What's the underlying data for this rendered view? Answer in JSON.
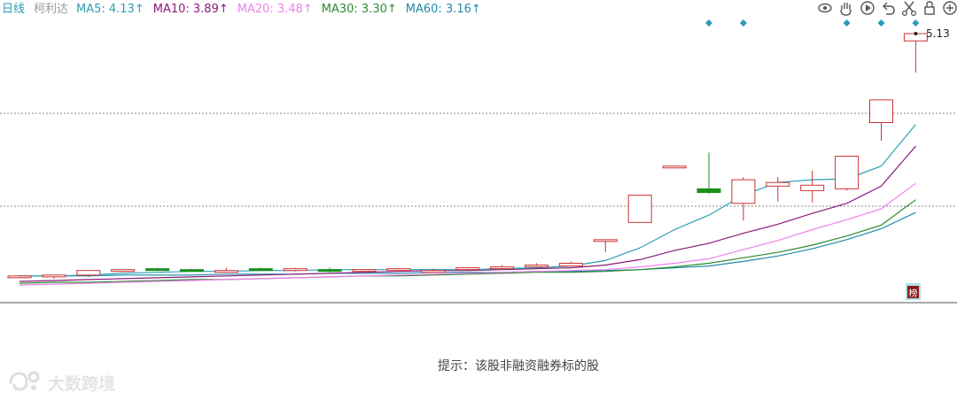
{
  "header": {
    "period_label": "日线",
    "stock_name": "柯利达",
    "ma_items": [
      {
        "label": "MA5: 4.13↑",
        "color": "#2aa0b4"
      },
      {
        "label": "MA10: 3.89↑",
        "color": "#8b1a7a"
      },
      {
        "label": "MA20: 3.48↑",
        "color": "#ee82ee"
      },
      {
        "label": "MA30: 3.30↑",
        "color": "#2e8b2e"
      },
      {
        "label": "MA60: 3.16↑",
        "color": "#1e8aa8"
      }
    ]
  },
  "toolbar": {
    "icons": [
      "eye-icon",
      "hand-icon",
      "play-icon",
      "undo-icon",
      "scissors-icon",
      "lock-icon",
      "zoom-in-icon"
    ]
  },
  "badge": {
    "text": "榜"
  },
  "footer": {
    "note": "提示：该股非融资融券标的股"
  },
  "watermark": {
    "text": "大数跨境"
  },
  "colors": {
    "up": "#cc3333",
    "down": "#1a8f1a",
    "marker": "#2a9bb8",
    "grid": "#888888"
  },
  "chart_data": {
    "type": "candlestick",
    "price_label": "5.13",
    "y_range": [
      2.25,
      5.35
    ],
    "candles": [
      {
        "o": 2.46,
        "h": 2.47,
        "l": 2.45,
        "c": 2.46
      },
      {
        "o": 2.45,
        "h": 2.47,
        "l": 2.43,
        "c": 2.47
      },
      {
        "o": 2.47,
        "h": 2.52,
        "l": 2.45,
        "c": 2.52
      },
      {
        "o": 2.52,
        "h": 2.53,
        "l": 2.5,
        "c": 2.53
      },
      {
        "o": 2.54,
        "h": 2.55,
        "l": 2.52,
        "c": 2.53
      },
      {
        "o": 2.53,
        "h": 2.54,
        "l": 2.51,
        "c": 2.52
      },
      {
        "o": 2.52,
        "h": 2.55,
        "l": 2.51,
        "c": 2.52
      },
      {
        "o": 2.54,
        "h": 2.55,
        "l": 2.52,
        "c": 2.53
      },
      {
        "o": 2.52,
        "h": 2.55,
        "l": 2.51,
        "c": 2.54
      },
      {
        "o": 2.53,
        "h": 2.55,
        "l": 2.5,
        "c": 2.52
      },
      {
        "o": 2.52,
        "h": 2.53,
        "l": 2.5,
        "c": 2.53
      },
      {
        "o": 2.53,
        "h": 2.55,
        "l": 2.51,
        "c": 2.54
      },
      {
        "o": 2.52,
        "h": 2.54,
        "l": 2.51,
        "c": 2.52
      },
      {
        "o": 2.53,
        "h": 2.56,
        "l": 2.52,
        "c": 2.55
      },
      {
        "o": 2.55,
        "h": 2.58,
        "l": 2.53,
        "c": 2.56
      },
      {
        "o": 2.56,
        "h": 2.6,
        "l": 2.55,
        "c": 2.58
      },
      {
        "o": 2.57,
        "h": 2.62,
        "l": 2.56,
        "c": 2.6
      },
      {
        "o": 2.86,
        "h": 2.86,
        "l": 2.72,
        "c": 2.86
      },
      {
        "o": 3.05,
        "h": 3.35,
        "l": 3.05,
        "c": 3.35
      },
      {
        "o": 3.67,
        "h": 3.67,
        "l": 3.67,
        "c": 3.67
      },
      {
        "o": 3.42,
        "h": 3.82,
        "l": 3.36,
        "c": 3.38
      },
      {
        "o": 3.26,
        "h": 3.55,
        "l": 3.07,
        "c": 3.52
      },
      {
        "o": 3.45,
        "h": 3.55,
        "l": 3.28,
        "c": 3.49
      },
      {
        "o": 3.4,
        "h": 3.62,
        "l": 3.27,
        "c": 3.46
      },
      {
        "o": 3.42,
        "h": 3.78,
        "l": 3.4,
        "c": 3.78
      },
      {
        "o": 4.15,
        "h": 4.4,
        "l": 3.95,
        "c": 4.4
      },
      {
        "o": 5.05,
        "h": 5.13,
        "l": 4.7,
        "c": 5.13
      }
    ],
    "ma5": [
      2.46,
      2.46,
      2.47,
      2.49,
      2.5,
      2.51,
      2.51,
      2.52,
      2.52,
      2.53,
      2.53,
      2.53,
      2.53,
      2.53,
      2.54,
      2.55,
      2.57,
      2.63,
      2.77,
      2.97,
      3.13,
      3.35,
      3.49,
      3.52,
      3.53,
      3.67,
      4.13
    ],
    "ma10": [
      2.4,
      2.41,
      2.42,
      2.43,
      2.44,
      2.45,
      2.46,
      2.47,
      2.48,
      2.49,
      2.5,
      2.51,
      2.52,
      2.52,
      2.53,
      2.54,
      2.55,
      2.58,
      2.64,
      2.74,
      2.82,
      2.93,
      3.03,
      3.15,
      3.26,
      3.45,
      3.89
    ],
    "ma20": [
      2.36,
      2.37,
      2.38,
      2.39,
      2.4,
      2.41,
      2.42,
      2.43,
      2.44,
      2.45,
      2.46,
      2.47,
      2.48,
      2.49,
      2.5,
      2.51,
      2.52,
      2.53,
      2.56,
      2.6,
      2.65,
      2.75,
      2.85,
      2.97,
      3.08,
      3.2,
      3.48
    ],
    "ma30": [
      2.38,
      2.39,
      2.39,
      2.4,
      2.41,
      2.42,
      2.42,
      2.43,
      2.44,
      2.45,
      2.46,
      2.46,
      2.47,
      2.48,
      2.49,
      2.5,
      2.5,
      2.51,
      2.53,
      2.56,
      2.6,
      2.66,
      2.72,
      2.8,
      2.9,
      3.02,
      3.3
    ],
    "ma60": [
      2.46,
      2.46,
      2.46,
      2.47,
      2.47,
      2.47,
      2.48,
      2.48,
      2.48,
      2.49,
      2.49,
      2.49,
      2.5,
      2.5,
      2.5,
      2.51,
      2.51,
      2.52,
      2.53,
      2.55,
      2.57,
      2.62,
      2.68,
      2.76,
      2.86,
      2.98,
      3.16
    ],
    "markers": [
      20,
      21,
      24,
      25,
      26
    ]
  }
}
